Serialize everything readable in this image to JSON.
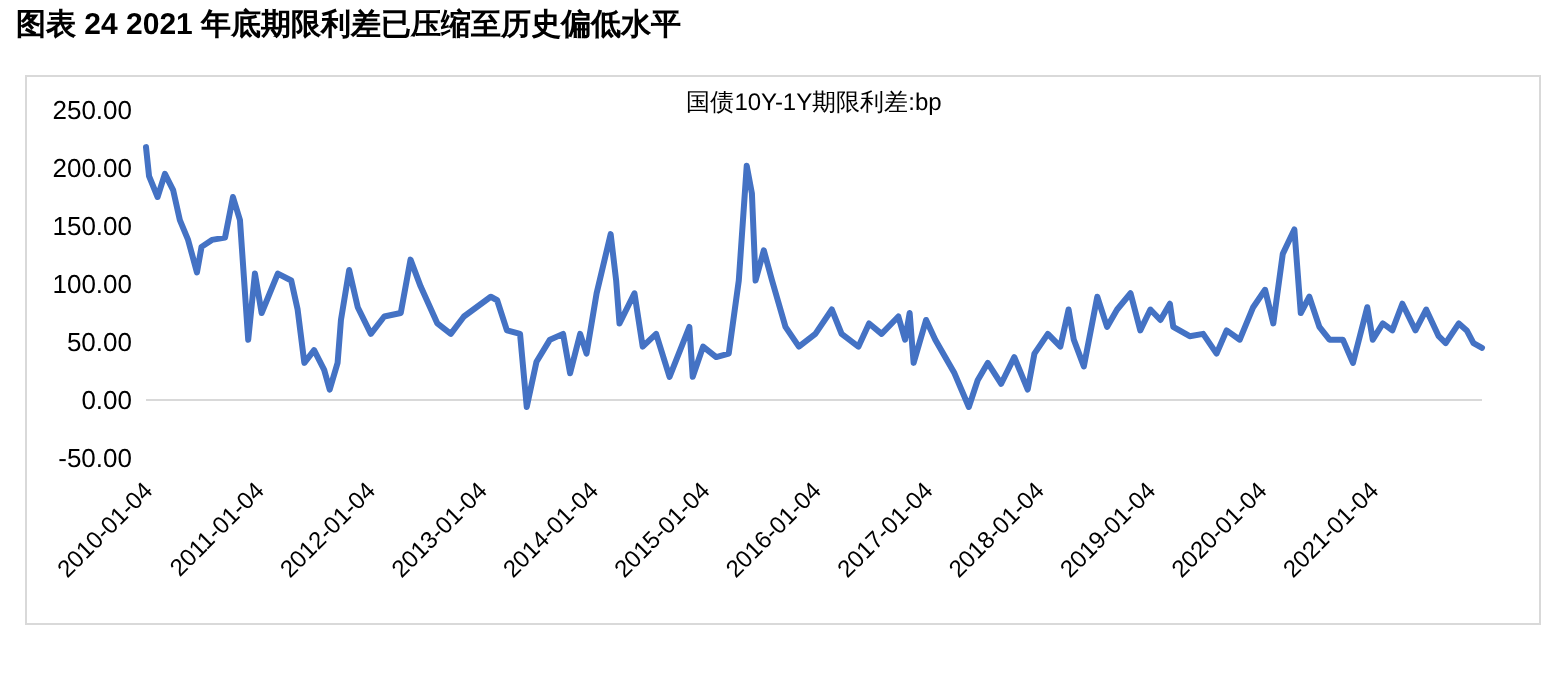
{
  "chart_data": {
    "type": "line",
    "title": "图表 24   2021 年底期限利差已压缩至历史偏低水平",
    "subtitle": "国债10Y-1Y期限利差:bp",
    "x": [
      "2010-01-04",
      "2010-01-14",
      "2010-02-11",
      "2010-03-07",
      "2010-04-03",
      "2010-04-25",
      "2010-05-22",
      "2010-06-20",
      "2010-07-05",
      "2010-08-08",
      "2010-09-20",
      "2010-10-16",
      "2010-11-08",
      "2010-12-05",
      "2010-12-27",
      "2011-01-18",
      "2011-03-12",
      "2011-04-25",
      "2011-05-16",
      "2011-06-07",
      "2011-07-09",
      "2011-08-11",
      "2011-08-29",
      "2011-09-24",
      "2011-10-05",
      "2011-11-01",
      "2011-11-29",
      "2012-01-11",
      "2012-02-24",
      "2012-04-18",
      "2012-05-20",
      "2012-06-22",
      "2012-08-16",
      "2012-09-29",
      "2012-11-11",
      "2013-02-07",
      "2013-02-28",
      "2013-04-01",
      "2013-05-14",
      "2013-06-05",
      "2013-07-07",
      "2013-08-20",
      "2013-10-02",
      "2013-10-25",
      "2013-11-27",
      "2013-12-18",
      "2014-01-20",
      "2014-03-07",
      "2014-03-25",
      "2014-04-05",
      "2014-05-24",
      "2014-06-20",
      "2014-08-03",
      "2014-09-16",
      "2014-11-20",
      "2014-12-01",
      "2015-01-04",
      "2015-02-16",
      "2015-03-29",
      "2015-05-01",
      "2015-05-27",
      "2015-06-13",
      "2015-06-25",
      "2015-07-22",
      "2015-08-18",
      "2015-10-01",
      "2015-11-14",
      "2016-01-07",
      "2016-03-01",
      "2016-04-02",
      "2016-05-27",
      "2016-07-01",
      "2016-08-11",
      "2016-10-05",
      "2016-10-27",
      "2016-11-11",
      "2016-11-24",
      "2017-01-04",
      "2017-02-03",
      "2017-04-07",
      "2017-05-24",
      "2017-06-22",
      "2017-07-25",
      "2017-09-07",
      "2017-10-20",
      "2017-12-03",
      "2017-12-25",
      "2018-02-07",
      "2018-03-20",
      "2018-04-16",
      "2018-05-03",
      "2018-06-05",
      "2018-07-19",
      "2018-08-20",
      "2018-09-22",
      "2018-11-05",
      "2018-12-07",
      "2019-01-09",
      "2019-02-11",
      "2019-03-14",
      "2019-03-25",
      "2019-05-18",
      "2019-07-01",
      "2019-08-14",
      "2019-09-16",
      "2019-10-29",
      "2019-12-12",
      "2020-01-20",
      "2020-02-16",
      "2020-03-18",
      "2020-04-25",
      "2020-05-16",
      "2020-06-13",
      "2020-07-16",
      "2020-08-18",
      "2020-10-01",
      "2020-11-03",
      "2020-12-20",
      "2021-01-07",
      "2021-02-09",
      "2021-03-12",
      "2021-04-14",
      "2021-05-27",
      "2021-07-01",
      "2021-08-11",
      "2021-09-03",
      "2021-10-16",
      "2021-11-11",
      "2021-12-03",
      "2021-12-31"
    ],
    "series": [
      {
        "color": "#4472c4",
        "values": [
          218,
          193,
          175,
          195,
          181,
          155,
          138,
          110,
          132,
          138,
          140,
          175,
          155,
          52,
          109,
          75,
          109,
          103,
          78,
          32,
          43,
          26,
          9,
          32,
          69,
          112,
          80,
          57,
          72,
          75,
          121,
          98,
          66,
          57,
          72,
          89,
          86,
          60,
          57,
          -6,
          33,
          52,
          57,
          23,
          57,
          40,
          92,
          143,
          103,
          66,
          92,
          46,
          57,
          20,
          63,
          20,
          46,
          37,
          40,
          103,
          202,
          178,
          103,
          129,
          103,
          63,
          46,
          57,
          78,
          57,
          46,
          66,
          57,
          72,
          52,
          75,
          32,
          69,
          52,
          23,
          -6,
          17,
          32,
          14,
          37,
          9,
          40,
          57,
          46,
          78,
          52,
          29,
          89,
          63,
          78,
          92,
          60,
          78,
          69,
          83,
          63,
          55,
          57,
          40,
          60,
          52,
          80,
          95,
          66,
          126,
          147,
          75,
          89,
          63,
          52,
          52,
          32,
          80,
          52,
          66,
          60,
          83,
          60,
          78,
          55,
          49,
          66,
          60,
          49,
          45
        ]
      }
    ],
    "xlim": [
      "2010-01-04",
      "2021-12-31"
    ],
    "xticks": [
      "2010-01-04",
      "2011-01-04",
      "2012-01-04",
      "2013-01-04",
      "2014-01-04",
      "2015-01-04",
      "2016-01-04",
      "2017-01-04",
      "2018-01-04",
      "2019-01-04",
      "2020-01-04",
      "2021-01-04"
    ],
    "ylim": [
      -50,
      250
    ],
    "yticks": [
      {
        "value": 250,
        "label": "250.00"
      },
      {
        "value": 200,
        "label": "200.00"
      },
      {
        "value": 150,
        "label": "150.00"
      },
      {
        "value": 100,
        "label": "100.00"
      },
      {
        "value": 50,
        "label": "50.00"
      },
      {
        "value": 0,
        "label": "0.00"
      },
      {
        "value": -50,
        "label": "-50.00"
      }
    ],
    "marker": "none",
    "line_style": "solid"
  }
}
